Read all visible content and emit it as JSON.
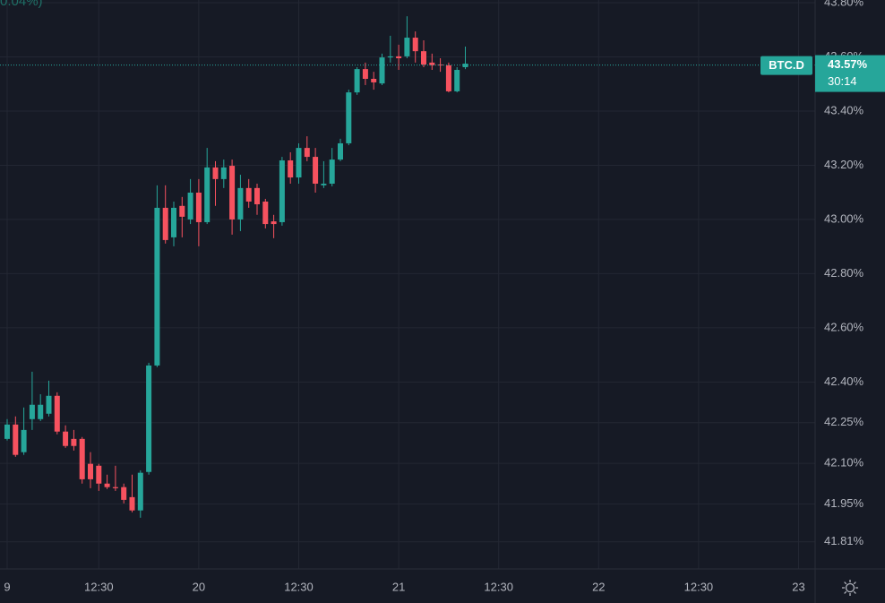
{
  "chart_data": {
    "type": "candlestick",
    "header_fragment": "0.04%)",
    "symbol": "BTC.D",
    "last_price": {
      "value": 43.57,
      "label": "43.57%"
    },
    "countdown": "30:14",
    "up_color": "#26a69a",
    "down_color": "#f7525f",
    "grid": true,
    "ylim": [
      41.71,
      43.81
    ],
    "yticks": [
      {
        "value": 43.8,
        "label": "43.80%"
      },
      {
        "value": 43.6,
        "label": "43.60%"
      },
      {
        "value": 43.4,
        "label": "43.40%"
      },
      {
        "value": 43.2,
        "label": "43.20%"
      },
      {
        "value": 43.0,
        "label": "43.00%"
      },
      {
        "value": 42.8,
        "label": "42.80%"
      },
      {
        "value": 42.6,
        "label": "42.60%"
      },
      {
        "value": 42.4,
        "label": "42.40%"
      },
      {
        "value": 42.25,
        "label": "42.25%"
      },
      {
        "value": 42.1,
        "label": "42.10%"
      },
      {
        "value": 41.95,
        "label": "41.95%"
      },
      {
        "value": 41.81,
        "label": "41.81%"
      }
    ],
    "categories": [
      "9",
      null,
      null,
      null,
      null,
      null,
      null,
      null,
      null,
      null,
      null,
      "12:30",
      null,
      null,
      null,
      null,
      null,
      null,
      null,
      null,
      null,
      null,
      null,
      "20",
      null,
      null,
      null,
      null,
      null,
      null,
      null,
      null,
      null,
      null,
      null,
      "12:30",
      null,
      null,
      null,
      null,
      null,
      null,
      null,
      null,
      null,
      null,
      null,
      "21",
      null,
      null,
      null,
      null,
      null,
      null,
      null,
      null,
      null,
      null,
      null,
      "12:30",
      null,
      null,
      null,
      null,
      null,
      null,
      null,
      null,
      null,
      null,
      null,
      "22",
      null,
      null,
      null,
      null,
      null,
      null,
      null,
      null,
      null,
      null,
      null,
      "12:30",
      null,
      null,
      null,
      null,
      null,
      null,
      null,
      null,
      null,
      null,
      null,
      "23"
    ],
    "open": [
      42.19,
      42.243,
      42.141,
      42.263,
      42.263,
      42.283,
      42.349,
      42.217,
      42.19,
      42.19,
      42.098,
      42.091,
      42.025,
      42.012,
      42.012,
      41.975,
      41.926,
      42.068,
      42.461,
      43.043,
      42.934,
      43.05,
      43.0,
      43.099,
      42.99,
      43.192,
      43.149,
      43.198,
      43.0,
      43.116,
      43.116,
      43.066,
      42.993,
      42.99,
      43.218,
      43.155,
      43.264,
      43.231,
      43.126,
      43.132,
      43.221,
      43.281,
      43.469,
      43.555,
      43.519,
      43.502,
      43.598,
      43.602,
      43.602,
      43.671,
      43.621,
      43.579,
      43.572,
      43.569,
      43.473,
      43.562,
      null,
      null,
      null,
      null,
      null,
      null,
      null,
      null,
      null,
      null,
      null,
      null,
      null,
      null,
      null,
      null,
      null,
      null,
      null,
      null,
      null,
      null,
      null,
      null,
      null,
      null,
      null,
      null,
      null,
      null,
      null,
      null,
      null,
      null,
      null,
      null,
      null,
      null,
      null,
      null
    ],
    "high": [
      42.263,
      42.273,
      42.306,
      42.438,
      42.355,
      42.405,
      42.362,
      42.24,
      42.223,
      42.197,
      42.141,
      42.098,
      42.058,
      42.091,
      42.025,
      42.058,
      42.074,
      42.471,
      43.126,
      43.126,
      43.066,
      43.083,
      43.149,
      43.149,
      43.264,
      43.215,
      43.221,
      43.221,
      43.165,
      43.149,
      43.132,
      43.076,
      43.017,
      43.231,
      43.248,
      43.281,
      43.307,
      43.264,
      43.215,
      43.264,
      43.298,
      43.479,
      43.562,
      43.579,
      43.545,
      43.612,
      43.678,
      43.645,
      43.75,
      43.694,
      43.661,
      43.612,
      43.595,
      43.579,
      43.562,
      43.638,
      null,
      null,
      null,
      null,
      null,
      null,
      null,
      null,
      null,
      null,
      null,
      null,
      null,
      null,
      null,
      null,
      null,
      null,
      null,
      null,
      null,
      null,
      null,
      null,
      null,
      null,
      null,
      null,
      null,
      null,
      null,
      null,
      null,
      null,
      null,
      null,
      null,
      null,
      null,
      null
    ],
    "low": [
      42.184,
      42.124,
      42.131,
      42.223,
      42.256,
      42.273,
      42.207,
      42.157,
      42.147,
      42.025,
      42.008,
      41.998,
      42.005,
      41.998,
      41.952,
      41.919,
      41.899,
      42.058,
      42.455,
      42.911,
      42.901,
      42.934,
      42.983,
      42.901,
      42.983,
      43.05,
      43.116,
      42.944,
      42.957,
      43.043,
      43.017,
      42.967,
      42.931,
      42.977,
      43.132,
      43.132,
      43.215,
      43.099,
      43.116,
      43.122,
      43.215,
      43.274,
      43.46,
      43.496,
      43.479,
      43.496,
      43.579,
      43.552,
      43.595,
      43.579,
      43.562,
      43.552,
      43.545,
      43.469,
      43.469,
      43.555,
      null,
      null,
      null,
      null,
      null,
      null,
      null,
      null,
      null,
      null,
      null,
      null,
      null,
      null,
      null,
      null,
      null,
      null,
      null,
      null,
      null,
      null,
      null,
      null,
      null,
      null,
      null,
      null,
      null,
      null,
      null,
      null,
      null,
      null,
      null,
      null,
      null,
      null,
      null,
      null
    ],
    "close": [
      42.243,
      42.131,
      42.223,
      42.316,
      42.316,
      42.349,
      42.217,
      42.164,
      42.164,
      42.041,
      42.041,
      42.025,
      42.012,
      42.008,
      41.965,
      41.926,
      42.065,
      42.461,
      43.043,
      42.924,
      43.043,
      43.01,
      43.099,
      42.99,
      43.192,
      43.149,
      43.192,
      43.0,
      43.116,
      43.066,
      43.056,
      42.983,
      42.983,
      43.218,
      43.155,
      43.264,
      43.231,
      43.132,
      43.132,
      43.221,
      43.281,
      43.469,
      43.555,
      43.519,
      43.506,
      43.598,
      43.602,
      43.595,
      43.671,
      43.621,
      43.572,
      43.569,
      43.569,
      43.473,
      43.552,
      43.575,
      null,
      null,
      null,
      null,
      null,
      null,
      null,
      null,
      null,
      null,
      null,
      null,
      null,
      null,
      null,
      null,
      null,
      null,
      null,
      null,
      null,
      null,
      null,
      null,
      null,
      null,
      null,
      null,
      null,
      null,
      null,
      null,
      null,
      null,
      null,
      null,
      null,
      null,
      null,
      null
    ]
  }
}
